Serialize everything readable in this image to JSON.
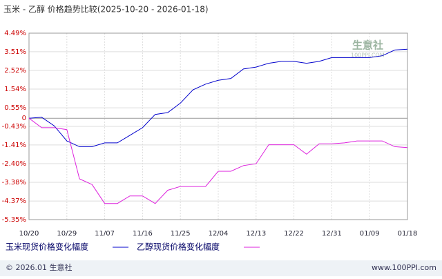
{
  "chart_data": {
    "type": "line",
    "title": "玉米 - 乙醇 价格趋势比较(2025-10-20 - 2026-01-18)",
    "categories": [
      "10/20",
      null,
      null,
      "10/29",
      null,
      null,
      "11/07",
      null,
      null,
      "11/16",
      null,
      null,
      "11/25",
      null,
      null,
      "12/04",
      null,
      null,
      "12/13",
      null,
      null,
      "12/22",
      null,
      null,
      "12/31",
      null,
      null,
      "01/09",
      null,
      null,
      "01/18"
    ],
    "series": [
      {
        "name": "玉米现货价格变化幅度",
        "color": "#0000cc",
        "values": [
          0,
          0.05,
          -0.4,
          -1.2,
          -1.5,
          -1.5,
          -1.3,
          -1.3,
          -0.9,
          -0.5,
          0.2,
          0.3,
          0.8,
          1.5,
          1.8,
          2.0,
          2.1,
          2.6,
          2.7,
          2.9,
          3.0,
          3.0,
          2.9,
          3.0,
          3.2,
          3.2,
          3.2,
          3.2,
          3.3,
          3.6,
          3.64
        ]
      },
      {
        "name": "乙醇现货价格变化幅度",
        "color": "#dd22dd",
        "values": [
          0,
          -0.5,
          -0.5,
          -0.6,
          -3.2,
          -3.5,
          -4.5,
          -4.5,
          -4.1,
          -4.1,
          -4.5,
          -3.8,
          -3.6,
          -3.6,
          -3.6,
          -2.8,
          -2.8,
          -2.5,
          -2.4,
          -1.4,
          -1.4,
          -1.4,
          -1.9,
          -1.35,
          -1.35,
          -1.3,
          -1.2,
          -1.2,
          -1.2,
          -1.5,
          -1.55
        ]
      }
    ],
    "ylim": [
      -5.35,
      4.49
    ],
    "yticks": [
      {
        "value": 4.49,
        "label": "4.49%"
      },
      {
        "value": 3.51,
        "label": "3.51%"
      },
      {
        "value": 2.52,
        "label": "2.52%"
      },
      {
        "value": 1.54,
        "label": "1.54%"
      },
      {
        "value": 0.55,
        "label": "0.55%"
      },
      0,
      {
        "value": -0.43,
        "label": "-0.43%"
      },
      {
        "value": -1.41,
        "label": "-1.41%"
      },
      {
        "value": -2.4,
        "label": "-2.40%"
      },
      {
        "value": -3.38,
        "label": "-3.38%"
      },
      {
        "value": -4.37,
        "label": "-4.37%"
      },
      {
        "value": -5.35,
        "label": "-5.35%"
      }
    ],
    "grid": true,
    "watermark": [
      "生意社",
      "100PPI.COM"
    ],
    "footer": {
      "left": "© 2026.01 生意社",
      "right": "www.100PPI.com"
    }
  }
}
